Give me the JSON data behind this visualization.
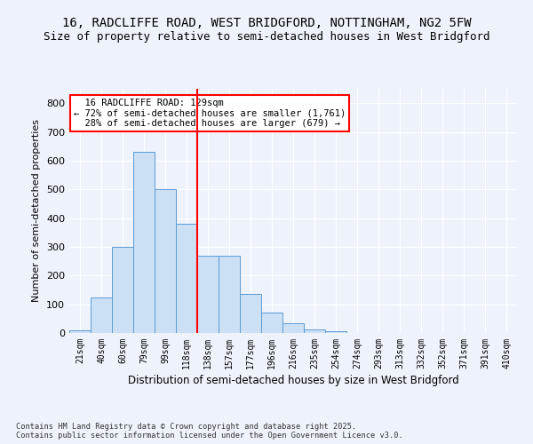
{
  "title1": "16, RADCLIFFE ROAD, WEST BRIDGFORD, NOTTINGHAM, NG2 5FW",
  "title2": "Size of property relative to semi-detached houses in West Bridgford",
  "xlabel": "Distribution of semi-detached houses by size in West Bridgford",
  "ylabel": "Number of semi-detached properties",
  "footnote": "Contains HM Land Registry data © Crown copyright and database right 2025.\nContains public sector information licensed under the Open Government Licence v3.0.",
  "bar_labels": [
    "21sqm",
    "40sqm",
    "60sqm",
    "79sqm",
    "99sqm",
    "118sqm",
    "138sqm",
    "157sqm",
    "177sqm",
    "196sqm",
    "216sqm",
    "235sqm",
    "254sqm",
    "274sqm",
    "293sqm",
    "313sqm",
    "332sqm",
    "352sqm",
    "371sqm",
    "391sqm",
    "410sqm"
  ],
  "bar_values": [
    10,
    125,
    300,
    630,
    500,
    380,
    270,
    270,
    135,
    70,
    35,
    12,
    5,
    0,
    0,
    0,
    0,
    0,
    0,
    0,
    0
  ],
  "bar_color": "#cce0f5",
  "bar_edge_color": "#5b9bd5",
  "vline_x": 5.5,
  "vline_color": "red",
  "property_label": "16 RADCLIFFE ROAD: 129sqm",
  "pct_smaller": "72%",
  "n_smaller": "1,761",
  "pct_larger": "28%",
  "n_larger": "679",
  "annotation_box_color": "red",
  "ylim": [
    0,
    850
  ],
  "yticks": [
    0,
    100,
    200,
    300,
    400,
    500,
    600,
    700,
    800
  ],
  "bg_color": "#eef3fb",
  "plot_bg_color": "#eef3fb",
  "grid_color": "#ffffff",
  "title1_fontsize": 10,
  "title2_fontsize": 9
}
